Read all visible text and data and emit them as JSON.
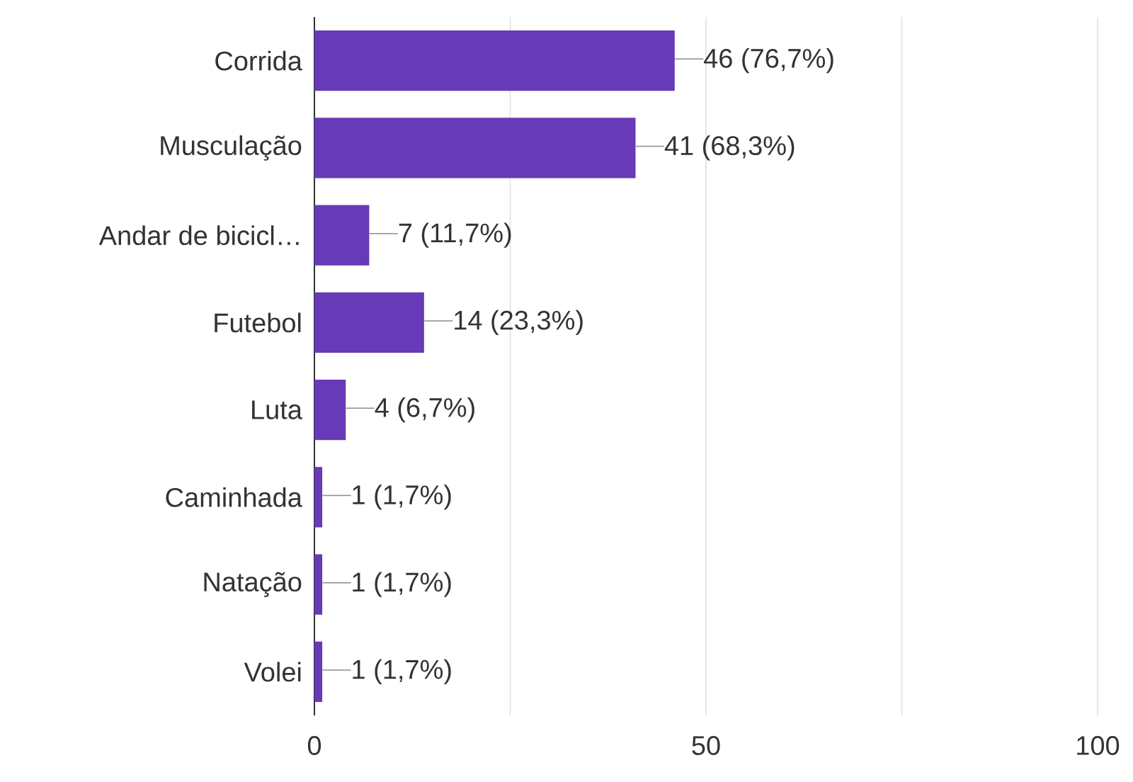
{
  "chart_data": {
    "type": "bar",
    "orientation": "horizontal",
    "categories": [
      "Corrida",
      "Musculação",
      "Andar de bicicl…",
      "Futebol",
      "Luta",
      "Caminhada",
      "Natação",
      "Volei"
    ],
    "values": [
      46,
      41,
      7,
      14,
      4,
      1,
      1,
      1
    ],
    "value_labels": [
      "46 (76,7%)",
      "41 (68,3%)",
      "7 (11,7%)",
      "14 (23,3%)",
      "4 (6,7%)",
      "1 (1,7%)",
      "1 (1,7%)",
      "1 (1,7%)"
    ],
    "color": "#673ab7",
    "xlim": [
      0,
      100
    ],
    "xticks": [
      0,
      {
        "value": 25,
        "label": null
      },
      50,
      {
        "value": 75,
        "label": null
      },
      100
    ],
    "grid": "x"
  }
}
